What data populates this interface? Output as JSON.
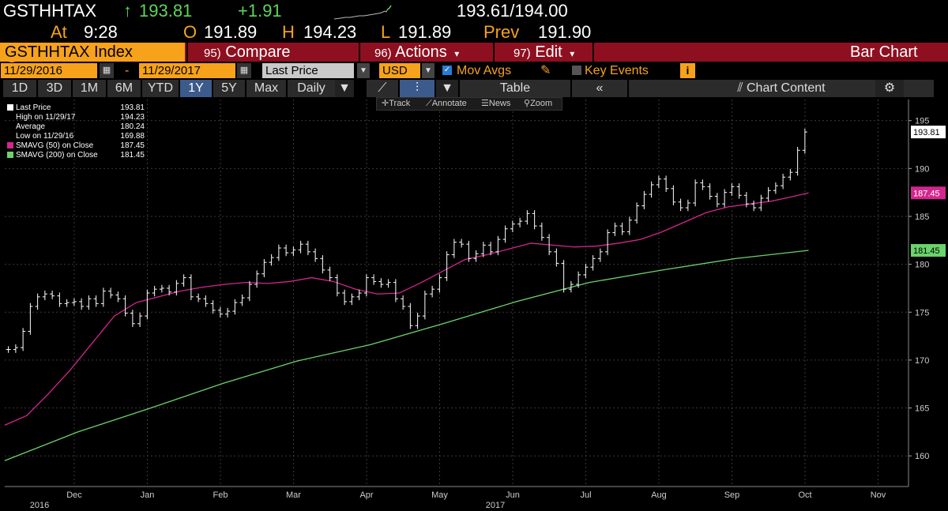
{
  "quote": {
    "ticker": "GSTHHTAX",
    "last": "193.81",
    "change": "+1.91",
    "arrow": "↑",
    "bid_ask": "193.61/194.00",
    "time_label": "At",
    "time": "9:28",
    "open_label": "O",
    "open": "191.89",
    "high_label": "H",
    "high": "194.23",
    "low_label": "L",
    "low": "191.89",
    "prev_label": "Prev",
    "prev": "191.90"
  },
  "redbar": {
    "security": "GSTHHTAX Index",
    "compare_num": "95)",
    "compare": "Compare",
    "actions_num": "96)",
    "actions": "Actions",
    "edit_num": "97)",
    "edit": "Edit",
    "title": "Bar Chart"
  },
  "toolbar": {
    "start_date": "11/29/2016",
    "dash": "-",
    "end_date": "11/29/2017",
    "field": "Last Price",
    "currency": "USD",
    "mov_avgs": "Mov Avgs",
    "key_events": "Key Events",
    "info": "i"
  },
  "periods": {
    "items": [
      "1D",
      "3D",
      "1M",
      "6M",
      "YTD",
      "1Y",
      "5Y",
      "Max"
    ],
    "active": "1Y",
    "frequency": "Daily",
    "table": "Table",
    "chart_content": "Chart Content"
  },
  "chart_tools": {
    "track": "Track",
    "annotate": "Annotate",
    "news": "News",
    "zoom": "Zoom"
  },
  "legend": {
    "items": [
      {
        "label": "Last Price",
        "value": "193.81"
      },
      {
        "label": "High on 11/29/17",
        "value": "194.23"
      },
      {
        "label": "Average",
        "value": "180.24"
      },
      {
        "label": "Low on 11/29/16",
        "value": "169.88"
      },
      {
        "label": "SMAVG (50) on Close",
        "value": "187.45"
      },
      {
        "label": "SMAVG (200) on Close",
        "value": "181.45"
      }
    ]
  },
  "colors": {
    "orange": "#f7a21b",
    "green_text": "#5cd65c",
    "red_bar": "#8e1020",
    "sma50": "#d3268e",
    "sma200": "#6bd36b",
    "price": "#ffffff"
  },
  "chart_data": {
    "type": "bar",
    "x_ticks": [
      "Dec",
      "Jan",
      "Feb",
      "Mar",
      "Apr",
      "May",
      "Jun",
      "Jul",
      "Aug",
      "Sep",
      "Oct",
      "Nov"
    ],
    "year_labels": [
      "2016",
      "2017"
    ],
    "y_ticks": [
      160,
      165,
      170,
      175,
      180,
      185,
      190,
      195
    ],
    "ylim": [
      156.8,
      197.2
    ],
    "last_value_label": "193.81",
    "sma50_label": "187.45",
    "sma200_label": "181.45",
    "price_series": [
      {
        "m": 0.05,
        "v": 171.1
      },
      {
        "m": 0.15,
        "v": 171.3
      },
      {
        "m": 0.25,
        "v": 173.0
      },
      {
        "m": 0.35,
        "v": 175.6
      },
      {
        "m": 0.45,
        "v": 176.6
      },
      {
        "m": 0.55,
        "v": 176.9
      },
      {
        "m": 0.65,
        "v": 176.7
      },
      {
        "m": 0.75,
        "v": 175.9
      },
      {
        "m": 0.85,
        "v": 176.0
      },
      {
        "m": 0.95,
        "v": 176.1
      },
      {
        "m": 1.05,
        "v": 175.6
      },
      {
        "m": 1.15,
        "v": 176.4
      },
      {
        "m": 1.25,
        "v": 175.9
      },
      {
        "m": 1.35,
        "v": 177.2
      },
      {
        "m": 1.45,
        "v": 176.8
      },
      {
        "m": 1.55,
        "v": 176.4
      },
      {
        "m": 1.65,
        "v": 174.9
      },
      {
        "m": 1.75,
        "v": 173.8
      },
      {
        "m": 1.85,
        "v": 174.6
      },
      {
        "m": 1.95,
        "v": 177.0
      },
      {
        "m": 2.05,
        "v": 177.4
      },
      {
        "m": 2.15,
        "v": 177.5
      },
      {
        "m": 2.25,
        "v": 177.1
      },
      {
        "m": 2.35,
        "v": 178.0
      },
      {
        "m": 2.45,
        "v": 178.6
      },
      {
        "m": 2.55,
        "v": 176.6
      },
      {
        "m": 2.65,
        "v": 176.4
      },
      {
        "m": 2.75,
        "v": 175.9
      },
      {
        "m": 2.85,
        "v": 175.2
      },
      {
        "m": 2.95,
        "v": 174.8
      },
      {
        "m": 3.05,
        "v": 175.1
      },
      {
        "m": 3.15,
        "v": 176.0
      },
      {
        "m": 3.25,
        "v": 176.5
      },
      {
        "m": 3.35,
        "v": 177.9
      },
      {
        "m": 3.45,
        "v": 179.0
      },
      {
        "m": 3.55,
        "v": 180.2
      },
      {
        "m": 3.65,
        "v": 180.7
      },
      {
        "m": 3.75,
        "v": 181.7
      },
      {
        "m": 3.85,
        "v": 181.2
      },
      {
        "m": 3.95,
        "v": 181.5
      },
      {
        "m": 4.05,
        "v": 182.1
      },
      {
        "m": 4.15,
        "v": 181.3
      },
      {
        "m": 4.25,
        "v": 180.6
      },
      {
        "m": 4.35,
        "v": 179.4
      },
      {
        "m": 4.45,
        "v": 178.6
      },
      {
        "m": 4.55,
        "v": 177.0
      },
      {
        "m": 4.65,
        "v": 176.1
      },
      {
        "m": 4.75,
        "v": 176.6
      },
      {
        "m": 4.85,
        "v": 177.0
      },
      {
        "m": 4.95,
        "v": 178.6
      },
      {
        "m": 5.05,
        "v": 178.2
      },
      {
        "m": 5.15,
        "v": 177.9
      },
      {
        "m": 5.25,
        "v": 178.1
      },
      {
        "m": 5.35,
        "v": 176.4
      },
      {
        "m": 5.45,
        "v": 175.6
      },
      {
        "m": 5.55,
        "v": 173.6
      },
      {
        "m": 5.65,
        "v": 174.6
      },
      {
        "m": 5.75,
        "v": 176.9
      },
      {
        "m": 5.85,
        "v": 177.4
      },
      {
        "m": 5.95,
        "v": 178.6
      },
      {
        "m": 6.05,
        "v": 181.0
      },
      {
        "m": 6.15,
        "v": 182.3
      },
      {
        "m": 6.25,
        "v": 182.1
      },
      {
        "m": 6.35,
        "v": 180.6
      },
      {
        "m": 6.45,
        "v": 181.1
      },
      {
        "m": 6.55,
        "v": 182.0
      },
      {
        "m": 6.65,
        "v": 181.3
      },
      {
        "m": 6.75,
        "v": 182.6
      },
      {
        "m": 6.85,
        "v": 183.7
      },
      {
        "m": 6.95,
        "v": 184.2
      },
      {
        "m": 7.05,
        "v": 184.5
      },
      {
        "m": 7.15,
        "v": 185.3
      },
      {
        "m": 7.25,
        "v": 184.0
      },
      {
        "m": 7.35,
        "v": 182.8
      },
      {
        "m": 7.45,
        "v": 181.3
      },
      {
        "m": 7.55,
        "v": 180.1
      },
      {
        "m": 7.65,
        "v": 177.4
      },
      {
        "m": 7.75,
        "v": 177.9
      },
      {
        "m": 7.85,
        "v": 178.9
      },
      {
        "m": 7.95,
        "v": 179.7
      },
      {
        "m": 8.05,
        "v": 180.6
      },
      {
        "m": 8.15,
        "v": 181.3
      },
      {
        "m": 8.25,
        "v": 183.3
      },
      {
        "m": 8.35,
        "v": 184.0
      },
      {
        "m": 8.45,
        "v": 183.4
      },
      {
        "m": 8.55,
        "v": 184.6
      },
      {
        "m": 8.65,
        "v": 186.1
      },
      {
        "m": 8.75,
        "v": 187.3
      },
      {
        "m": 8.85,
        "v": 188.3
      },
      {
        "m": 8.95,
        "v": 188.9
      },
      {
        "m": 9.05,
        "v": 187.9
      },
      {
        "m": 9.15,
        "v": 186.5
      },
      {
        "m": 9.25,
        "v": 185.9
      },
      {
        "m": 9.35,
        "v": 186.4
      },
      {
        "m": 9.45,
        "v": 188.5
      },
      {
        "m": 9.55,
        "v": 188.1
      },
      {
        "m": 9.65,
        "v": 187.1
      },
      {
        "m": 9.75,
        "v": 186.3
      },
      {
        "m": 9.85,
        "v": 187.5
      },
      {
        "m": 9.95,
        "v": 188.1
      },
      {
        "m": 10.05,
        "v": 187.2
      },
      {
        "m": 10.15,
        "v": 186.3
      },
      {
        "m": 10.25,
        "v": 185.9
      },
      {
        "m": 10.35,
        "v": 186.9
      },
      {
        "m": 10.45,
        "v": 187.7
      },
      {
        "m": 10.55,
        "v": 188.2
      },
      {
        "m": 10.65,
        "v": 189.1
      },
      {
        "m": 10.75,
        "v": 189.6
      },
      {
        "m": 10.85,
        "v": 191.9
      },
      {
        "m": 10.95,
        "v": 193.81
      }
    ],
    "sma50": [
      {
        "m": 0.0,
        "v": 163.2
      },
      {
        "m": 0.3,
        "v": 164.2
      },
      {
        "m": 0.6,
        "v": 166.5
      },
      {
        "m": 0.9,
        "v": 169.0
      },
      {
        "m": 1.2,
        "v": 171.8
      },
      {
        "m": 1.5,
        "v": 174.6
      },
      {
        "m": 1.8,
        "v": 176.0
      },
      {
        "m": 2.1,
        "v": 176.6
      },
      {
        "m": 2.4,
        "v": 177.2
      },
      {
        "m": 2.7,
        "v": 177.6
      },
      {
        "m": 3.0,
        "v": 177.9
      },
      {
        "m": 3.3,
        "v": 178.1
      },
      {
        "m": 3.6,
        "v": 178.0
      },
      {
        "m": 3.9,
        "v": 178.2
      },
      {
        "m": 4.2,
        "v": 178.6
      },
      {
        "m": 4.5,
        "v": 178.2
      },
      {
        "m": 4.8,
        "v": 177.4
      },
      {
        "m": 5.1,
        "v": 176.9
      },
      {
        "m": 5.4,
        "v": 177.0
      },
      {
        "m": 5.7,
        "v": 178.1
      },
      {
        "m": 6.0,
        "v": 179.3
      },
      {
        "m": 6.3,
        "v": 180.5
      },
      {
        "m": 6.6,
        "v": 181.0
      },
      {
        "m": 6.9,
        "v": 181.6
      },
      {
        "m": 7.2,
        "v": 182.2
      },
      {
        "m": 7.5,
        "v": 182.0
      },
      {
        "m": 7.8,
        "v": 181.8
      },
      {
        "m": 8.1,
        "v": 181.9
      },
      {
        "m": 8.4,
        "v": 182.2
      },
      {
        "m": 8.7,
        "v": 182.6
      },
      {
        "m": 9.0,
        "v": 183.4
      },
      {
        "m": 9.3,
        "v": 184.4
      },
      {
        "m": 9.6,
        "v": 185.4
      },
      {
        "m": 9.9,
        "v": 186.0
      },
      {
        "m": 10.2,
        "v": 186.3
      },
      {
        "m": 10.5,
        "v": 186.6
      },
      {
        "m": 10.8,
        "v": 187.1
      },
      {
        "m": 11.0,
        "v": 187.45
      }
    ],
    "sma200": [
      {
        "m": 0.0,
        "v": 159.5
      },
      {
        "m": 1.0,
        "v": 162.5
      },
      {
        "m": 2.0,
        "v": 165.0
      },
      {
        "m": 3.0,
        "v": 167.6
      },
      {
        "m": 4.0,
        "v": 169.9
      },
      {
        "m": 5.0,
        "v": 171.6
      },
      {
        "m": 6.0,
        "v": 173.8
      },
      {
        "m": 7.0,
        "v": 176.1
      },
      {
        "m": 8.0,
        "v": 178.1
      },
      {
        "m": 9.0,
        "v": 179.4
      },
      {
        "m": 10.0,
        "v": 180.6
      },
      {
        "m": 11.0,
        "v": 181.45
      }
    ]
  }
}
